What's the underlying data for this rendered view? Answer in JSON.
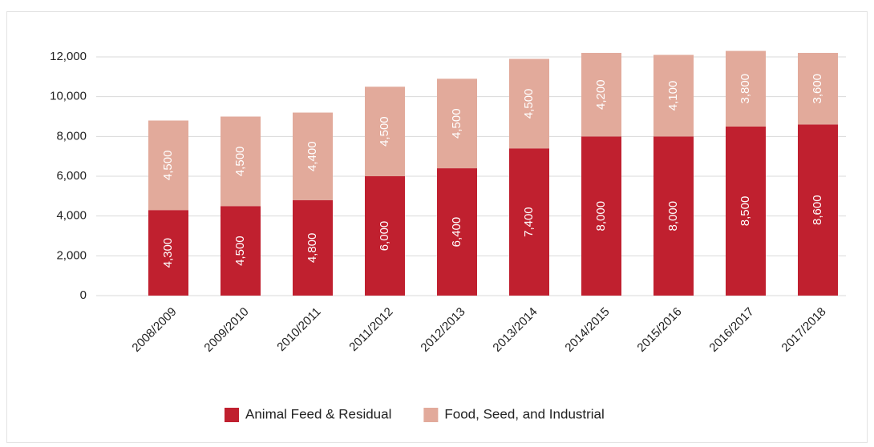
{
  "chart_data": {
    "type": "bar",
    "stacked": true,
    "categories": [
      "2008/2009",
      "2009/2010",
      "2010/2011",
      "2011/2012",
      "2012/2013",
      "2013/2014",
      "2014/2015",
      "2015/2016",
      "2016/2017",
      "2017/2018"
    ],
    "series": [
      {
        "name": "Animal Feed & Residual",
        "color": "#c0202f",
        "values": [
          4300,
          4500,
          4800,
          6000,
          6400,
          7400,
          8000,
          8000,
          8500,
          8600
        ],
        "value_labels": [
          "4,300",
          "4,500",
          "4,800",
          "6,000",
          "6,400",
          "7,400",
          "8,000",
          "8,000",
          "8,500",
          "8,600"
        ]
      },
      {
        "name": "Food, Seed, and Industrial",
        "color": "#e2aa9b",
        "values": [
          4500,
          4500,
          4400,
          4500,
          4500,
          4500,
          4200,
          4100,
          3800,
          3600
        ],
        "value_labels": [
          "4,500",
          "4,500",
          "4,400",
          "4,500",
          "4,500",
          "4,500",
          "4,200",
          "4,100",
          "3,800",
          "3,600"
        ]
      }
    ],
    "ylim": [
      0,
      12000
    ],
    "yticks": [
      0,
      {
        "value": 2000,
        "label": "2,000"
      },
      {
        "value": 4000,
        "label": "4,000"
      },
      {
        "value": 6000,
        "label": "6,000"
      },
      {
        "value": 8000,
        "label": "8,000"
      },
      {
        "value": 10000,
        "label": "10,000"
      },
      {
        "value": 12000,
        "label": "12,000"
      }
    ],
    "grid": true,
    "legend": "bottom"
  }
}
